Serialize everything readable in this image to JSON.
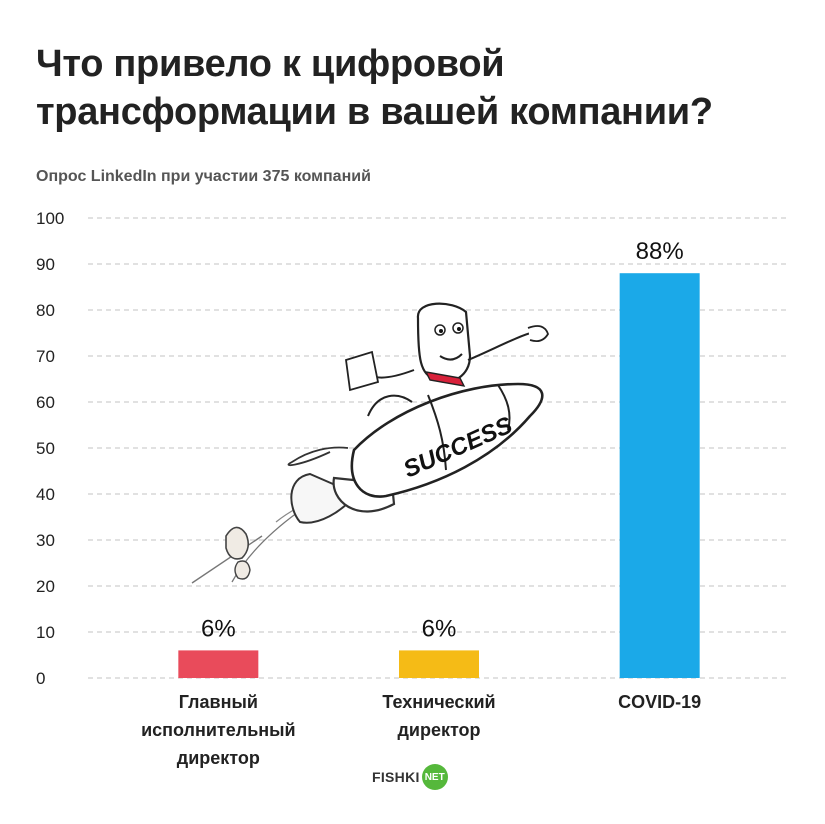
{
  "title": "Что привело к цифровой трансформации в вашей компании?",
  "subtitle": "Опрос LinkedIn при участии 375 компаний",
  "brand": {
    "text": "FISHKI",
    "badge": "NET"
  },
  "chart_data": {
    "type": "bar",
    "categories": [
      [
        "Главный",
        "исполнительный",
        "директор"
      ],
      [
        "Технический",
        "директор"
      ],
      [
        "COVID-19"
      ]
    ],
    "values": [
      6,
      6,
      88
    ],
    "value_labels": [
      "6%",
      "6%",
      "88%"
    ],
    "colors": [
      "#e94b5b",
      "#f5bb16",
      "#1ba9e8"
    ],
    "yticks": [
      0,
      10,
      20,
      30,
      40,
      50,
      60,
      70,
      80,
      90,
      100
    ],
    "ylim": [
      0,
      100
    ],
    "grid": true,
    "grid_color": "#cfcfcf"
  },
  "illustration": {
    "rocket_text": "SUCCESS"
  }
}
